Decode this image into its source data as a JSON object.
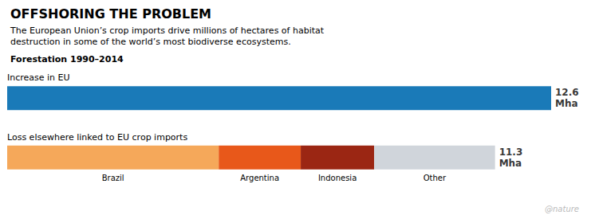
{
  "chart_data": {
    "type": "bar",
    "orientation": "horizontal",
    "stacked": true,
    "title": "OFFSHORING THE PROBLEM",
    "subtitle": "The European Union’s crop imports drive millions of hectares of habitat\ndestruction in some of the world’s most biodiverse ecosystems.",
    "heading_bold": "Forestation",
    "heading": " 1990–2014",
    "categories": [
      "Increase in EU",
      "Loss elsewhere linked to EU crop imports"
    ],
    "series": [
      {
        "color": "#1a7ab8",
        "values": [
          12.6,
          null
        ]
      },
      {
        "name": "Brazil",
        "color": "#f5a85a",
        "values": [
          null,
          4.9
        ]
      },
      {
        "name": "Argentina",
        "color": "#e8581a",
        "values": [
          null,
          1.9
        ]
      },
      {
        "name": "Indonesia",
        "color": "#9b2613",
        "values": [
          null,
          1.7
        ]
      },
      {
        "name": "Other",
        "color": "#d0d5db",
        "values": [
          null,
          2.8
        ]
      }
    ],
    "annotations": [
      {
        "category": "Increase in EU",
        "value": 12.6,
        "text": "12.6\nMha"
      },
      {
        "category": "Loss elsewhere linked to EU crop imports",
        "value": 11.3,
        "text": "11.3\nMha"
      }
    ],
    "xlim": [
      0,
      12.6
    ],
    "tick_labels": false,
    "grid": false,
    "source": "@nature"
  }
}
